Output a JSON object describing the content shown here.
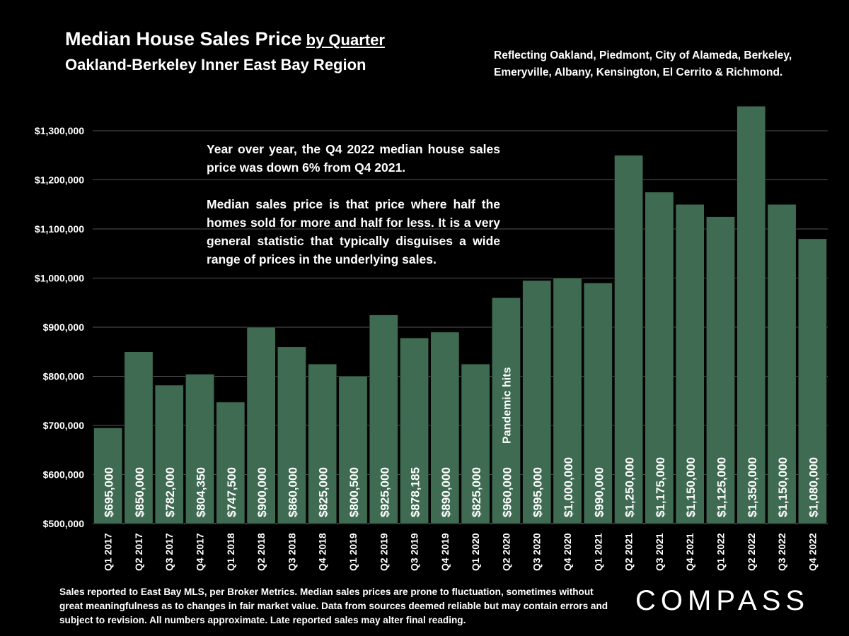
{
  "header": {
    "title": "Median House Sales Price",
    "title_suffix": "by Quarter",
    "subtitle": "Oakland-Berkeley Inner East Bay Region",
    "coverage": "Reflecting Oakland, Piedmont, City of Alameda, Berkeley, Emeryville, Albany, Kensington, El Cerrito & Richmond."
  },
  "annotation": {
    "p1": "Year over year, the Q4 2022 median house sales price was down 6% from Q4 2021.",
    "p2": "Median sales price is that price where half the homes sold for more and half for less. It is a very general statistic that typically disguises a wide range of prices in the underlying sales."
  },
  "footer": "Sales reported to East Bay MLS, per Broker Metrics. Median sales prices are prone to fluctuation, sometimes without great meaningfulness as to changes in fair market value. Data from sources deemed reliable but may contain errors and subject to revision. All numbers approximate. Late reported sales may alter final reading.",
  "logo": "COMPASS",
  "colors": {
    "bar": "#3f6b52",
    "background": "#000000",
    "text": "#ffffff",
    "grid": "#555555"
  },
  "chart_data": {
    "type": "bar",
    "categories": [
      "Q1 2017",
      "Q2 2017",
      "Q3 2017",
      "Q4 2017",
      "Q1 2018",
      "Q2 2018",
      "Q3 2018",
      "Q4 2018",
      "Q1 2019",
      "Q2 2019",
      "Q3 2019",
      "Q4 2019",
      "Q1 2020",
      "Q2 2020",
      "Q3 2020",
      "Q4 2020",
      "Q1 2021",
      "Q2 2021",
      "Q3 2021",
      "Q4 2021",
      "Q1 2022",
      "Q2 2022",
      "Q3 2022",
      "Q4 2022"
    ],
    "values": [
      695000,
      850000,
      782000,
      804350,
      747500,
      900000,
      860000,
      825000,
      800500,
      925000,
      878185,
      890000,
      825000,
      960000,
      995000,
      1000000,
      990000,
      1250000,
      1175000,
      1150000,
      1125000,
      1350000,
      1150000,
      1080000
    ],
    "data_labels": [
      "$695,000",
      "$850,000",
      "$782,000",
      "$804,350",
      "$747,500",
      "$900,000",
      "$860,000",
      "$825,000",
      "$800,500",
      "$925,000",
      "$878,185",
      "$890,000",
      "$825,000",
      "$960,000",
      "$995,000",
      "$1,000,000",
      "$990,000",
      "$1,250,000",
      "$1,175,000",
      "$1,150,000",
      "$1,125,000",
      "$1,350,000",
      "$1,150,000",
      "$1,080,000"
    ],
    "ylim": [
      500000,
      1300000
    ],
    "yticks": [
      500000,
      600000,
      700000,
      800000,
      900000,
      1000000,
      1100000,
      1200000,
      1300000
    ],
    "ytick_labels": [
      "$500,000",
      "$600,000",
      "$700,000",
      "$800,000",
      "$900,000",
      "$1,000,000",
      "$1,100,000",
      "$1,200,000",
      "$1,300,000"
    ],
    "grid": true,
    "bar_annotation": {
      "category": "Q2 2020",
      "text": "Pandemic hits"
    }
  }
}
